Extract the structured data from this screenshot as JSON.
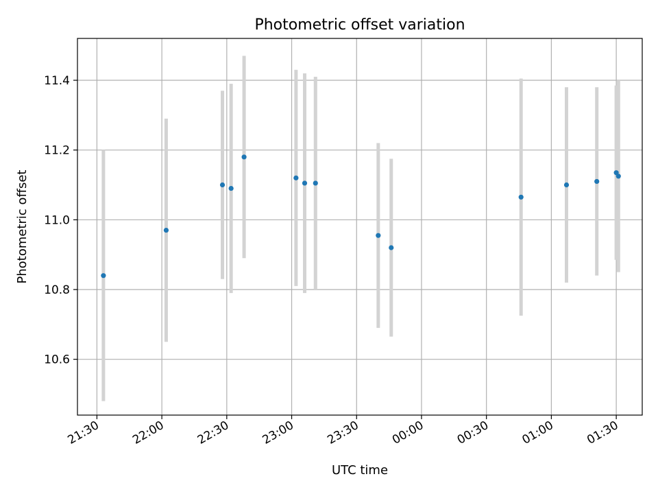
{
  "chart_data": {
    "type": "scatter",
    "title": "Photometric offset variation",
    "xlabel": "UTC time",
    "ylabel": "Photometric offset",
    "x_tick_labels": [
      "21:30",
      "22:00",
      "22:30",
      "23:00",
      "23:30",
      "00:00",
      "00:30",
      "01:00",
      "01:30"
    ],
    "y_tick_labels": [
      "10.6",
      "10.8",
      "11.0",
      "11.2",
      "11.4"
    ],
    "y_ticks": [
      10.6,
      10.8,
      11.0,
      11.2,
      11.4
    ],
    "xlim": [
      "21:21",
      "01:42"
    ],
    "ylim": [
      10.44,
      11.52
    ],
    "grid": true,
    "legend": "none",
    "colors": {
      "point": "#1f77b4",
      "errorbar": "#d3d3d3",
      "grid": "#b0b0b0"
    },
    "points": [
      {
        "x": "21:33",
        "y": 10.84,
        "err": 0.36
      },
      {
        "x": "22:02",
        "y": 10.97,
        "err": 0.32
      },
      {
        "x": "22:28",
        "y": 11.1,
        "err": 0.27
      },
      {
        "x": "22:32",
        "y": 11.09,
        "err": 0.3
      },
      {
        "x": "22:38",
        "y": 11.18,
        "err": 0.29
      },
      {
        "x": "23:02",
        "y": 11.12,
        "err": 0.31
      },
      {
        "x": "23:06",
        "y": 11.105,
        "err": 0.315
      },
      {
        "x": "23:11",
        "y": 11.105,
        "err": 0.305
      },
      {
        "x": "23:40",
        "y": 10.955,
        "err": 0.265
      },
      {
        "x": "23:46",
        "y": 10.92,
        "err": 0.255
      },
      {
        "x": "00:46",
        "y": 11.065,
        "err": 0.34
      },
      {
        "x": "01:07",
        "y": 11.1,
        "err": 0.28
      },
      {
        "x": "01:21",
        "y": 11.11,
        "err": 0.27
      },
      {
        "x": "01:30",
        "y": 11.135,
        "err": 0.25
      },
      {
        "x": "01:31",
        "y": 11.125,
        "err": 0.275
      }
    ]
  }
}
